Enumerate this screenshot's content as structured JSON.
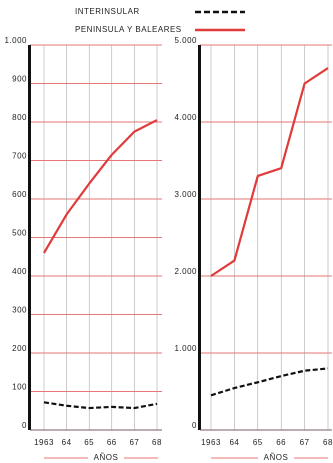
{
  "chart_data": [
    {
      "type": "line",
      "categories": [
        "1963",
        "64",
        "65",
        "66",
        "67",
        "68"
      ],
      "x_label": "AÑOS",
      "ylim": [
        0,
        1000
      ],
      "yticks": [
        0,
        100,
        200,
        300,
        400,
        500,
        600,
        700,
        800,
        900,
        {
          "value": 1000,
          "label": "1.000"
        }
      ],
      "grid": true,
      "grid_color": "#e04848",
      "series": [
        {
          "name": "INTERINSULAR",
          "color": "#111111",
          "dashed": true,
          "values": [
            72,
            63,
            57,
            60,
            57,
            68
          ]
        },
        {
          "name": "PENINSULA Y BALEARES",
          "color": "#e03a3a",
          "dashed": false,
          "values": [
            460,
            560,
            640,
            715,
            775,
            805
          ]
        }
      ]
    },
    {
      "type": "line",
      "categories": [
        "1963",
        "64",
        "65",
        "66",
        "67",
        "68"
      ],
      "x_label": "AÑOS",
      "ylim": [
        0,
        5000
      ],
      "yticks": [
        0,
        {
          "value": 1000,
          "label": "1.000"
        },
        {
          "value": 2000,
          "label": "2.000"
        },
        {
          "value": 3000,
          "label": "3.000"
        },
        {
          "value": 4000,
          "label": "4.000"
        },
        {
          "value": 5000,
          "label": "5.000"
        }
      ],
      "grid": true,
      "grid_color": "#e04848",
      "series": [
        {
          "color": "#111111",
          "dashed": true,
          "values": [
            450,
            545,
            620,
            700,
            770,
            800
          ]
        },
        {
          "color": "#e03a3a",
          "dashed": false,
          "values": [
            2000,
            2200,
            3300,
            3400,
            4500,
            4700
          ]
        }
      ]
    }
  ]
}
